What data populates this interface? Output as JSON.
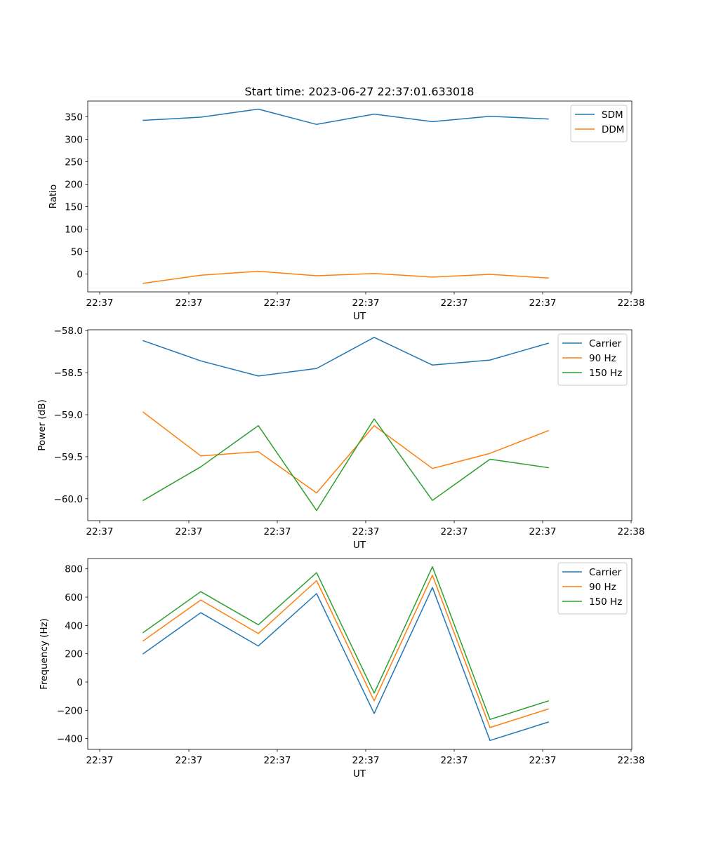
{
  "chart_data": [
    {
      "type": "line",
      "title": "Start time: 2023-06-27 22:37:01.633018",
      "xlabel": "UT",
      "ylabel": "Ratio",
      "x_tick_labels": [
        "22:37",
        "22:37",
        "22:37",
        "22:37",
        "22:37",
        "22:37",
        "22:37",
        "22:38"
      ],
      "yticks": [
        0,
        50,
        100,
        150,
        200,
        250,
        300,
        350
      ],
      "y_tick_labels": [
        "0",
        "50",
        "100",
        "150",
        "200",
        "250",
        "300",
        "350"
      ],
      "ylim": [
        -40,
        385
      ],
      "legend_position": "top-right",
      "series": [
        {
          "name": "SDM",
          "color": "#1f77b4",
          "values": [
            342,
            349,
            367,
            333,
            356,
            339,
            351,
            345
          ]
        },
        {
          "name": "DDM",
          "color": "#ff7f0e",
          "values": [
            -21,
            -3,
            6,
            -4,
            1,
            -7,
            -1,
            -9
          ]
        }
      ]
    },
    {
      "type": "line",
      "title": "",
      "xlabel": "UT",
      "ylabel": "Power (dB)",
      "x_tick_labels": [
        "22:37",
        "22:37",
        "22:37",
        "22:37",
        "22:37",
        "22:37",
        "22:37",
        "22:38"
      ],
      "yticks": [
        -60.0,
        -59.5,
        -59.0,
        -58.5,
        -58.0
      ],
      "y_tick_labels": [
        "−60.0",
        "−59.5",
        "−59.0",
        "−58.5",
        "−58.0"
      ],
      "ylim": [
        -60.26,
        -57.99
      ],
      "legend_position": "top-right",
      "series": [
        {
          "name": "Carrier",
          "color": "#1f77b4",
          "values": [
            -58.12,
            -58.36,
            -58.54,
            -58.45,
            -58.08,
            -58.41,
            -58.35,
            -58.15
          ]
        },
        {
          "name": "90 Hz",
          "color": "#ff7f0e",
          "values": [
            -58.97,
            -59.49,
            -59.44,
            -59.93,
            -59.13,
            -59.64,
            -59.46,
            -59.19
          ]
        },
        {
          "name": "150 Hz",
          "color": "#2ca02c",
          "values": [
            -60.02,
            -59.62,
            -59.13,
            -60.14,
            -59.05,
            -60.02,
            -59.53,
            -59.63
          ]
        }
      ]
    },
    {
      "type": "line",
      "title": "",
      "xlabel": "UT",
      "ylabel": "Frequency (Hz)",
      "x_tick_labels": [
        "22:37",
        "22:37",
        "22:37",
        "22:37",
        "22:37",
        "22:37",
        "22:37",
        "22:38"
      ],
      "yticks": [
        -400,
        -200,
        0,
        200,
        400,
        600,
        800
      ],
      "y_tick_labels": [
        "−400",
        "−200",
        "0",
        "200",
        "400",
        "600",
        "800"
      ],
      "ylim": [
        -476,
        873
      ],
      "legend_position": "top-right",
      "series": [
        {
          "name": "Carrier",
          "color": "#1f77b4",
          "values": [
            200,
            490,
            255,
            625,
            -222,
            668,
            -413,
            -283
          ]
        },
        {
          "name": "90 Hz",
          "color": "#ff7f0e",
          "values": [
            291,
            580,
            343,
            717,
            -133,
            755,
            -322,
            -191
          ]
        },
        {
          "name": "150 Hz",
          "color": "#2ca02c",
          "values": [
            350,
            639,
            405,
            773,
            -78,
            815,
            -264,
            -134
          ]
        }
      ]
    }
  ]
}
